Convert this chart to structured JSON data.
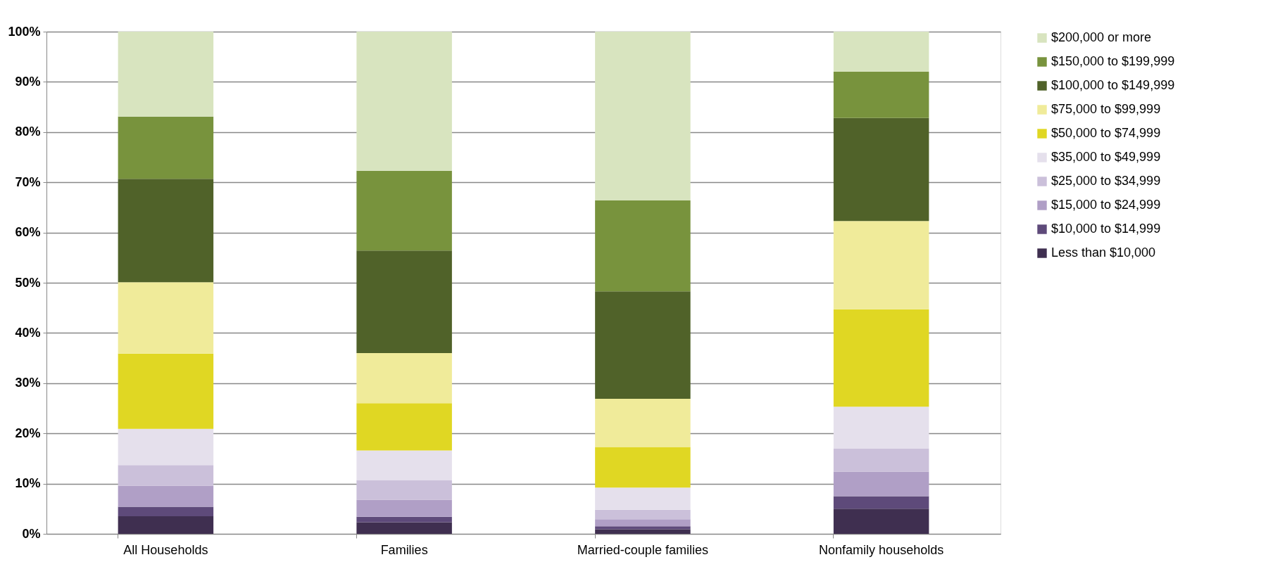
{
  "chart_data": {
    "type": "bar",
    "stacked": true,
    "categories": [
      "All Households",
      "Families",
      "Married-couple families",
      "Nonfamily households"
    ],
    "series": [
      {
        "name": "Less than $10,000",
        "color": "#3f2f50",
        "values": [
          3.5,
          2.3,
          0.9,
          5.0
        ]
      },
      {
        "name": "$10,000 to $14,999",
        "color": "#5e4a7a",
        "values": [
          1.9,
          1.1,
          0.6,
          2.5
        ]
      },
      {
        "name": "$15,000 to $24,999",
        "color": "#b09fc6",
        "values": [
          4.2,
          3.4,
          1.4,
          4.9
        ]
      },
      {
        "name": "$25,000 to $34,999",
        "color": "#cbc0da",
        "values": [
          4.1,
          3.9,
          1.9,
          4.6
        ]
      },
      {
        "name": "$35,000 to $49,999",
        "color": "#e5e0ec",
        "values": [
          7.2,
          5.9,
          4.4,
          8.3
        ]
      },
      {
        "name": "$50,000 to $74,999",
        "color": "#e0d723",
        "values": [
          15.0,
          9.4,
          8.1,
          19.4
        ]
      },
      {
        "name": "$75,000 to $99,999",
        "color": "#f0eb9a",
        "values": [
          14.2,
          10.0,
          9.6,
          17.6
        ]
      },
      {
        "name": "$100,000 to $149,999",
        "color": "#506229",
        "values": [
          20.6,
          20.4,
          21.4,
          20.5
        ]
      },
      {
        "name": "$150,000 to $199,999",
        "color": "#78933d",
        "values": [
          12.4,
          15.9,
          18.1,
          9.2
        ]
      },
      {
        "name": "$200,000 or more",
        "color": "#d8e4bf",
        "values": [
          16.9,
          27.7,
          33.6,
          8.0
        ]
      }
    ],
    "ylim": [
      0,
      100
    ],
    "yticks": [
      {
        "value": 0,
        "label": "0%"
      },
      {
        "value": 10,
        "label": "10%"
      },
      {
        "value": 20,
        "label": "20%"
      },
      {
        "value": 30,
        "label": "30%"
      },
      {
        "value": 40,
        "label": "40%"
      },
      {
        "value": 50,
        "label": "50%"
      },
      {
        "value": 60,
        "label": "60%"
      },
      {
        "value": 70,
        "label": "70%"
      },
      {
        "value": 80,
        "label": "80%"
      },
      {
        "value": 90,
        "label": "90%"
      },
      {
        "value": 100,
        "label": "100%"
      }
    ],
    "grid": "y",
    "legend": "right"
  }
}
